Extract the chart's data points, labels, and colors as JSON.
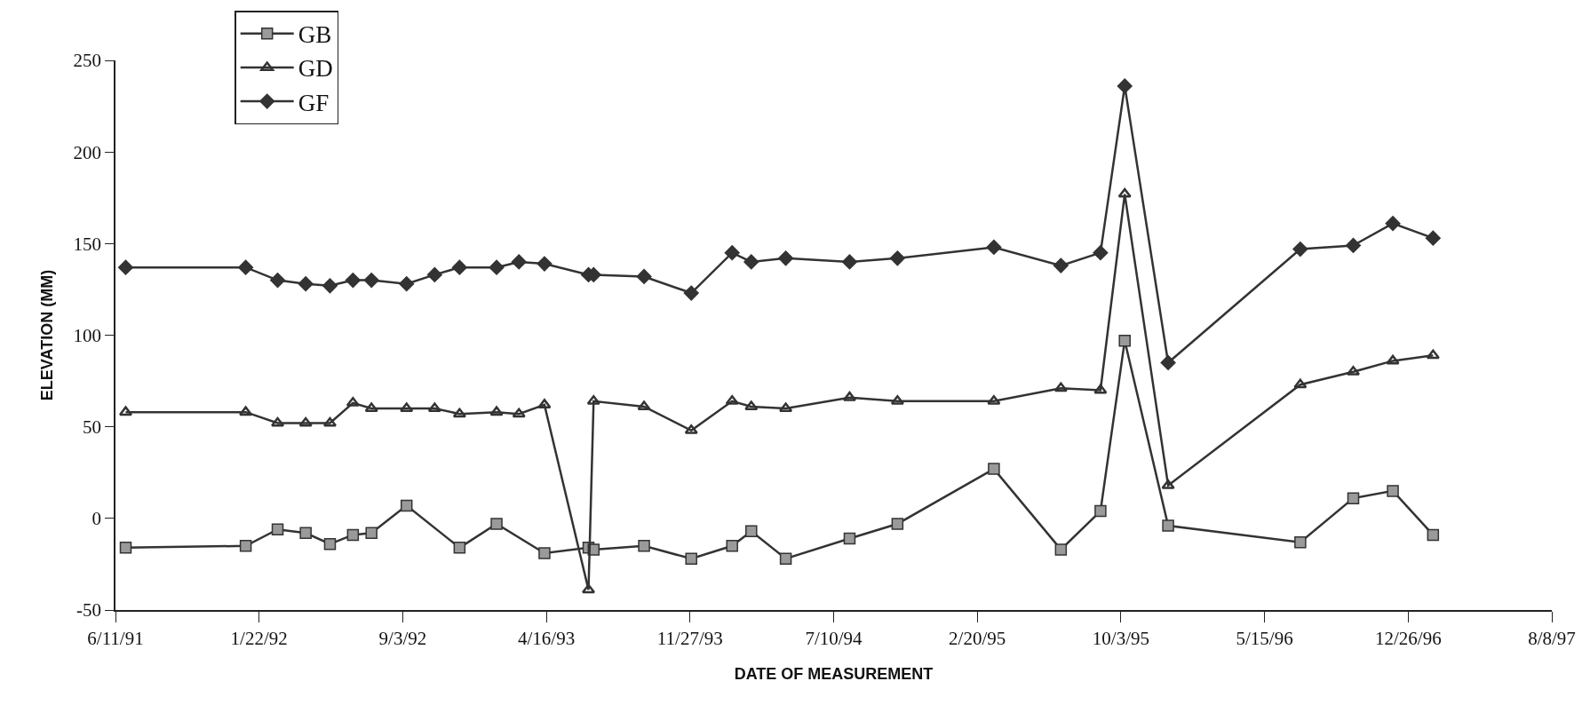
{
  "chart_data": {
    "type": "line",
    "xlabel": "DATE OF MEASUREMENT",
    "ylabel": "ELEVATION (MM)",
    "x": [
      "1991-06-27",
      "1992-01-01",
      "1992-02-20",
      "1992-04-04",
      "1992-05-12",
      "1992-06-17",
      "1992-07-16",
      "1992-09-09",
      "1992-10-23",
      "1992-12-01",
      "1993-01-28",
      "1993-03-04",
      "1993-04-13",
      "1993-06-21",
      "1993-06-29",
      "1993-09-16",
      "1993-11-29",
      "1994-02-01",
      "1994-03-03",
      "1994-04-26",
      "1994-08-04",
      "1994-10-18",
      "1995-03-18",
      "1995-07-01",
      "1995-09-01",
      "1995-10-09",
      "1995-12-16",
      "1996-07-10",
      "1996-10-01",
      "1996-12-02",
      "1997-02-03"
    ],
    "series": [
      {
        "name": "GB",
        "color": "#333333",
        "marker": "square",
        "x": [
          "1991-06-27",
          "1992-01-01",
          "1992-02-20",
          "1992-04-04",
          "1992-05-12",
          "1992-06-17",
          "1992-07-16",
          "1992-09-09",
          "1992-12-01",
          "1993-01-28",
          "1993-04-13",
          "1993-06-21",
          "1993-06-29",
          "1993-09-16",
          "1993-11-29",
          "1994-02-01",
          "1994-03-03",
          "1994-04-26",
          "1994-08-04",
          "1994-10-18",
          "1995-03-18",
          "1995-07-01",
          "1995-09-01",
          "1995-10-09",
          "1995-12-16",
          "1996-07-10",
          "1996-10-01",
          "1996-12-02",
          "1997-02-03"
        ],
        "values": [
          -16,
          -15,
          -6,
          -8,
          -14,
          -9,
          -8,
          7,
          -16,
          -3,
          -19,
          -16,
          -17,
          -15,
          -22,
          -15,
          -7,
          -22,
          -11,
          -3,
          27,
          -17,
          4,
          97,
          -4,
          -13,
          11,
          15,
          -9
        ]
      },
      {
        "name": "GD",
        "color": "#333333",
        "marker": "triangle",
        "values": [
          58,
          58,
          52,
          52,
          52,
          63,
          60,
          60,
          60,
          57,
          58,
          57,
          62,
          -39,
          64,
          61,
          48,
          64,
          61,
          60,
          66,
          64,
          64,
          71,
          70,
          177,
          18,
          73,
          80,
          86,
          89
        ]
      },
      {
        "name": "GF",
        "color": "#333333",
        "marker": "diamond",
        "values": [
          137,
          137,
          130,
          128,
          127,
          130,
          130,
          128,
          133,
          137,
          137,
          140,
          139,
          133,
          133,
          132,
          123,
          145,
          140,
          142,
          140,
          142,
          148,
          138,
          145,
          236,
          85,
          147,
          149,
          161,
          153
        ]
      }
    ],
    "xlim": [
      "1991-06-11",
      "1997-08-08"
    ],
    "xticks": [
      {
        "value": "1991-06-11",
        "label": "6/11/91"
      },
      {
        "value": "1992-01-22",
        "label": "1/22/92"
      },
      {
        "value": "1992-09-03",
        "label": "9/3/92"
      },
      {
        "value": "1993-04-16",
        "label": "4/16/93"
      },
      {
        "value": "1993-11-27",
        "label": "11/27/93"
      },
      {
        "value": "1994-07-10",
        "label": "7/10/94"
      },
      {
        "value": "1995-02-20",
        "label": "2/20/95"
      },
      {
        "value": "1995-10-03",
        "label": "10/3/95"
      },
      {
        "value": "1996-05-15",
        "label": "5/15/96"
      },
      {
        "value": "1996-12-26",
        "label": "12/26/96"
      },
      {
        "value": "1997-08-08",
        "label": "8/8/97"
      }
    ],
    "ylim": [
      -50,
      250
    ],
    "yticks": [
      -50,
      0,
      50,
      100,
      150,
      200,
      250
    ],
    "grid": false,
    "legend": "top left",
    "line_style": "solid"
  }
}
